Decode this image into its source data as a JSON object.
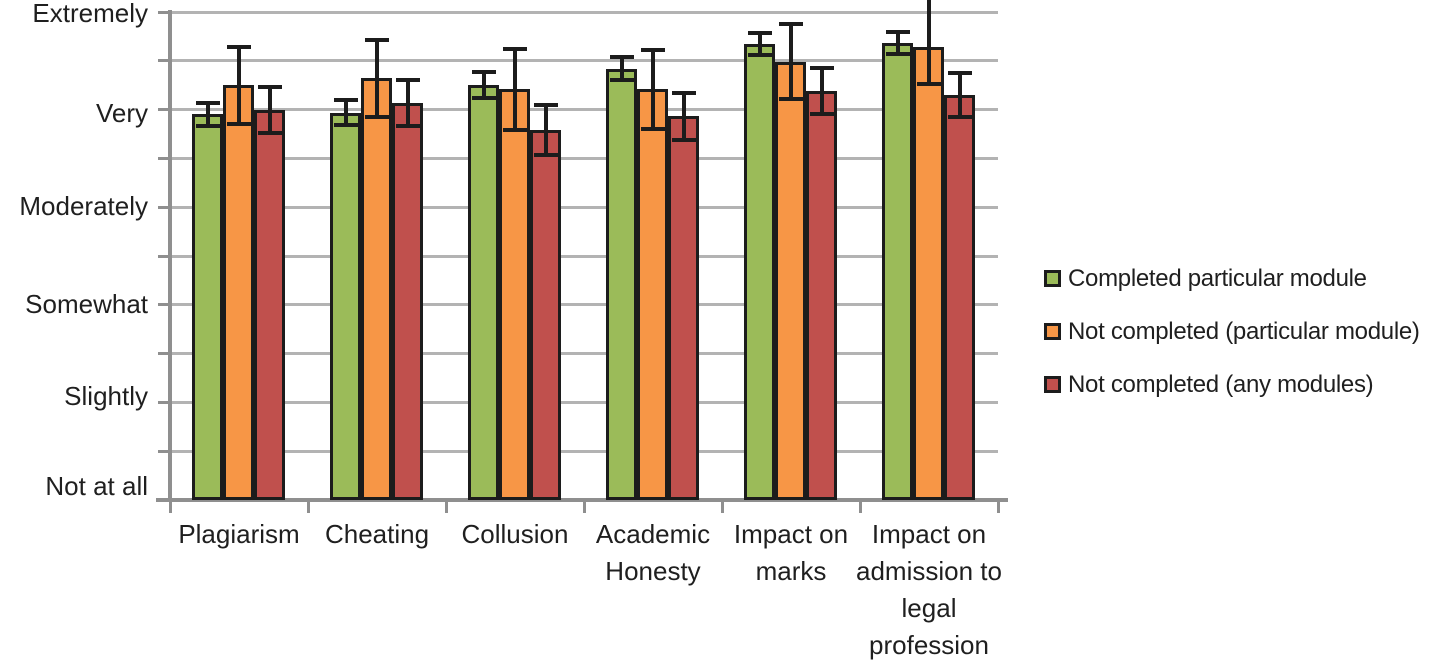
{
  "chart_data": {
    "type": "bar",
    "title": "",
    "categories": [
      "Plagiarism",
      "Cheating",
      "Collusion",
      "Academic\nHonesty",
      "Impact on\nmarks",
      "Impact on\nadmission to\nlegal\nprofession"
    ],
    "ytick_labels": [
      "Not at all",
      "Slightly",
      "Somewhat",
      "Moderately",
      "Very",
      "Extremely"
    ],
    "ylim": [
      0,
      5
    ],
    "grid_step": 0.5,
    "grid": true,
    "legend_position": "right",
    "series": [
      {
        "name": "Completed particular module",
        "color": "#9BBB59",
        "values": [
          3.95,
          3.97,
          4.25,
          4.42,
          4.67,
          4.68
        ],
        "errors": [
          0.12,
          0.13,
          0.14,
          0.12,
          0.12,
          0.12
        ]
      },
      {
        "name": "Not completed (particular module)",
        "color": "#F79646",
        "values": [
          4.25,
          4.32,
          4.21,
          4.21,
          4.49,
          4.64
        ],
        "errors": [
          0.4,
          0.4,
          0.42,
          0.41,
          0.39,
          [
            0.38,
            0.52
          ]
        ]
      },
      {
        "name": "Not completed (any modules)",
        "color": "#C0504D",
        "values": [
          4.0,
          4.07,
          3.79,
          3.93,
          4.19,
          4.15
        ],
        "errors": [
          0.24,
          0.24,
          0.26,
          0.25,
          0.24,
          0.23
        ]
      }
    ],
    "bar_border_color": "#1c1c1c",
    "error_bar_color": "#1c1c1c",
    "gridline_color": "#b3b3b3",
    "axis_color": "#8f8f8f",
    "text_color": "#1f1f1f",
    "background": "#ffffff"
  }
}
